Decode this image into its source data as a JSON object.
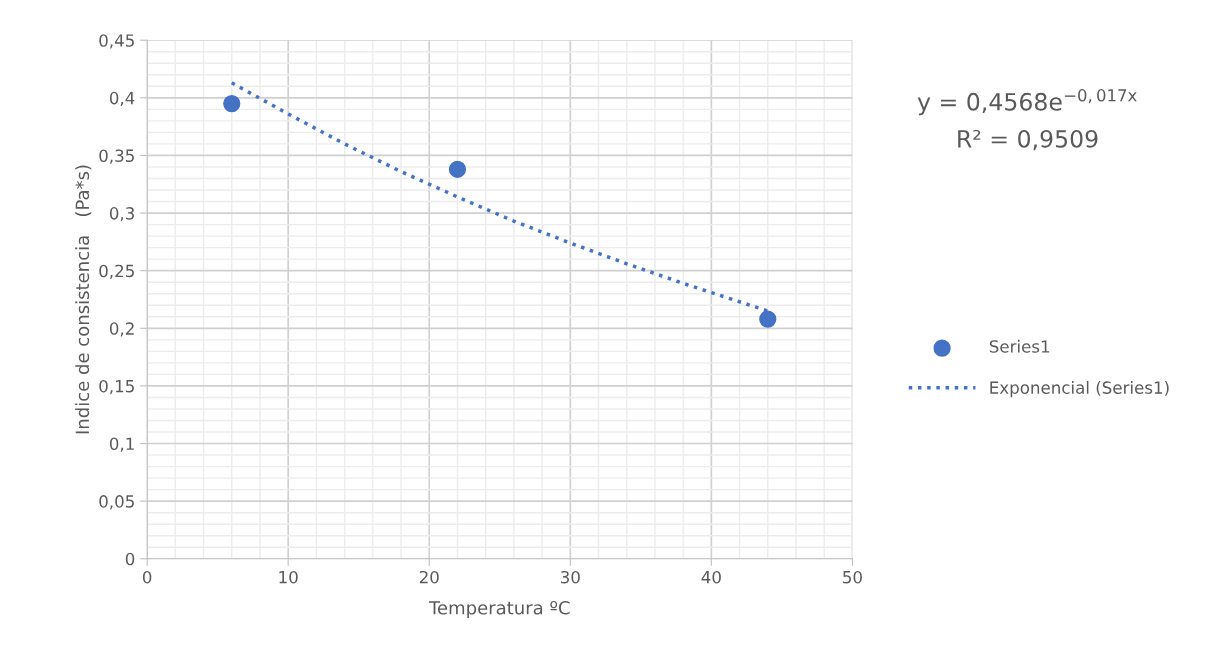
{
  "chart_data": {
    "type": "scatter",
    "xlabel": "Temperatura ºC",
    "ylabel": "Indice de consistencia   (Pa*s)",
    "xlim": [
      0,
      50
    ],
    "xticks": [
      0,
      10,
      20,
      30,
      40,
      50
    ],
    "ylim": [
      0,
      0.45
    ],
    "yticks": [
      {
        "value": 0,
        "label": "0"
      },
      {
        "value": 0.05,
        "label": "0,05"
      },
      {
        "value": 0.1,
        "label": "0,1"
      },
      {
        "value": 0.15,
        "label": "0,15"
      },
      {
        "value": 0.2,
        "label": "0,2"
      },
      {
        "value": 0.25,
        "label": "0,25"
      },
      {
        "value": 0.3,
        "label": "0,3"
      },
      {
        "value": 0.35,
        "label": "0,35"
      },
      {
        "value": 0.4,
        "label": "0,4"
      },
      {
        "value": 0.45,
        "label": "0,45"
      }
    ],
    "grid": true,
    "legend": "right",
    "series": [
      {
        "name": "Series1",
        "marker": "circle",
        "color": "#4472c4",
        "x": [
          6,
          22,
          44
        ],
        "values": [
          0.395,
          0.338,
          0.208
        ]
      },
      {
        "name": "Exponencial (Series1)",
        "type": "line",
        "line_style": "dotted",
        "marker": "none",
        "color": "#4472c4",
        "x": [
          6,
          10,
          14,
          18,
          22,
          26,
          30,
          34,
          38,
          44
        ],
        "values": [
          0.413,
          0.386,
          0.36,
          0.336,
          0.314,
          0.293,
          0.274,
          0.256,
          0.239,
          0.215
        ]
      }
    ],
    "annotations": [
      "y = 0,4568e$^{−0,017x}$",
      "R² = 0,9509"
    ]
  }
}
